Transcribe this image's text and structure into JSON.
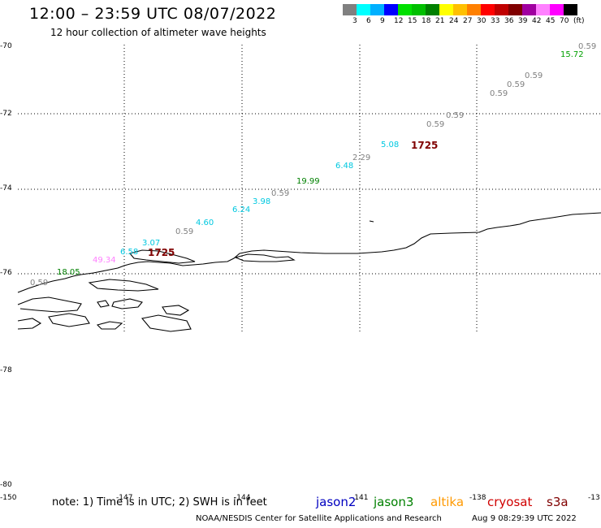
{
  "header": {
    "title": "12:00 – 23:59 UTC 08/07/2022",
    "subtitle": "12 hour collection of altimeter wave heights"
  },
  "legend": {
    "colors": [
      "#808080",
      "#00ffff",
      "#00b0ff",
      "#0000ff",
      "#00e000",
      "#00c000",
      "#008000",
      "#ffff00",
      "#ffc000",
      "#ff8000",
      "#ff0000",
      "#c00000",
      "#800000",
      "#a000a0",
      "#ff80ff",
      "#ff00ff",
      "#000000"
    ],
    "labels": [
      "3",
      "6",
      "9",
      "12",
      "15",
      "18",
      "21",
      "24",
      "27",
      "30",
      "33",
      "36",
      "39",
      "42",
      "45",
      "70",
      "(ft)"
    ]
  },
  "axes": {
    "lat_labels": [
      "-70",
      "-72",
      "-74",
      "-76",
      "-78",
      "-80"
    ],
    "lon_labels": [
      "-150",
      "-147",
      "-144",
      "-141",
      "-138",
      "-13"
    ]
  },
  "observations": [
    {
      "text": "0.59",
      "color": "#808080"
    },
    {
      "text": "15.72",
      "color": "#00a000"
    },
    {
      "text": "0.59",
      "color": "#808080"
    },
    {
      "text": "0.59",
      "color": "#808080"
    },
    {
      "text": "0.59",
      "color": "#808080"
    },
    {
      "text": "0.59",
      "color": "#808080"
    },
    {
      "text": "0.59",
      "color": "#808080"
    },
    {
      "text": "1725",
      "color": "#800000"
    },
    {
      "text": "5.08",
      "color": "#00c8e0"
    },
    {
      "text": "2.29",
      "color": "#808080"
    },
    {
      "text": "6.48",
      "color": "#00c8e0"
    },
    {
      "text": "19.99",
      "color": "#008000"
    },
    {
      "text": "0.59",
      "color": "#808080"
    },
    {
      "text": "3.98",
      "color": "#00c8e0"
    },
    {
      "text": "6.24",
      "color": "#00c8e0"
    },
    {
      "text": "4.60",
      "color": "#00c8e0"
    },
    {
      "text": "0.59",
      "color": "#808080"
    },
    {
      "text": "3.07",
      "color": "#00c8e0"
    },
    {
      "text": "6.58",
      "color": "#00c8e0"
    },
    {
      "text": "1725",
      "color": "#800000"
    },
    {
      "text": "49.34",
      "color": "#ff80ff"
    },
    {
      "text": "18.05",
      "color": "#008000"
    },
    {
      "text": "0.59",
      "color": "#808080"
    }
  ],
  "footer": {
    "note": "note: 1) Time is in UTC; 2) SWH is in feet",
    "satellites": [
      {
        "name": "jason2",
        "color": "#0000c0"
      },
      {
        "name": "jason3",
        "color": "#008000"
      },
      {
        "name": "altika",
        "color": "#ff9900"
      },
      {
        "name": "cryosat",
        "color": "#d00000"
      },
      {
        "name": "s3a",
        "color": "#800000"
      }
    ],
    "credit": "NOAA/NESDIS Center for Satellite Applications and Research",
    "timestamp": "Aug  9 08:29:39 UTC 2022"
  }
}
